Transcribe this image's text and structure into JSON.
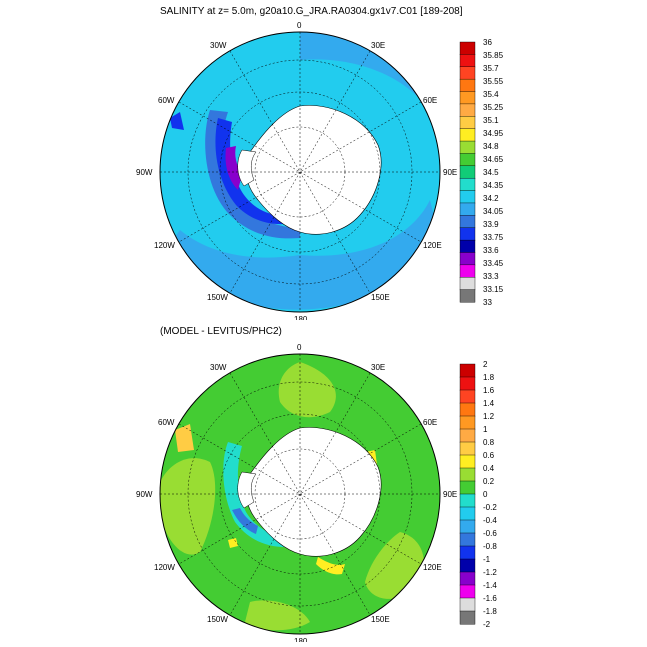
{
  "panels": [
    {
      "title": "SALINITY at z=   5.0m, g20a10.G_JRA.RA0304.gx1v7.C01 [189-208]",
      "colorbar": {
        "labels": [
          "36",
          "35.85",
          "35.7",
          "35.55",
          "35.4",
          "35.25",
          "35.1",
          "34.95",
          "34.8",
          "34.65",
          "34.5",
          "34.35",
          "34.2",
          "34.05",
          "33.9",
          "33.75",
          "33.6",
          "33.45",
          "33.3",
          "33.15",
          "33"
        ],
        "colors": [
          "#cc0000",
          "#ee1111",
          "#ff4422",
          "#ff7711",
          "#ff9922",
          "#ffaa44",
          "#ffcc44",
          "#ffee22",
          "#99dd33",
          "#44cc33",
          "#11cc77",
          "#22ddcc",
          "#22ccee",
          "#33aaee",
          "#3377dd",
          "#1133ee",
          "#0000aa",
          "#8800cc",
          "#ee00ee",
          "#dddddd",
          "#777777"
        ]
      }
    },
    {
      "title": "(MODEL - LEVITUS/PHC2)",
      "colorbar": {
        "labels": [
          "2",
          "1.8",
          "1.6",
          "1.4",
          "1.2",
          "1",
          "0.8",
          "0.6",
          "0.4",
          "0.2",
          "0",
          "-0.2",
          "-0.4",
          "-0.6",
          "-0.8",
          "-1",
          "-1.2",
          "-1.4",
          "-1.6",
          "-1.8",
          "-2"
        ],
        "colors": [
          "#cc0000",
          "#ee1111",
          "#ff4422",
          "#ff7711",
          "#ff9922",
          "#ffaa44",
          "#ffcc44",
          "#ffee22",
          "#99dd33",
          "#44cc33",
          "#22ddcc",
          "#22ccee",
          "#33aaee",
          "#3377dd",
          "#1133ee",
          "#0000aa",
          "#8800cc",
          "#ee00ee",
          "#dddddd",
          "#777777"
        ]
      }
    }
  ],
  "longitude_labels": [
    "0",
    "30E",
    "60E",
    "90E",
    "120E",
    "150E",
    "180",
    "150W",
    "120W",
    "90W",
    "60W",
    "30W"
  ]
}
